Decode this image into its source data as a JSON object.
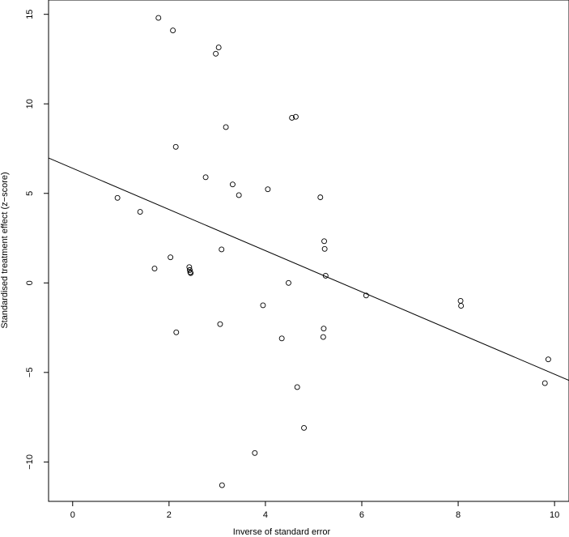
{
  "chart_data": {
    "type": "scatter",
    "xlabel": "Inverse of standard error",
    "ylabel": "Standardised treatment effect (z−score)",
    "xlim": [
      -0.5,
      10.3
    ],
    "ylim": [
      -12.2,
      15.8
    ],
    "xticks": [
      0,
      2,
      4,
      6,
      8,
      10
    ],
    "yticks": [
      15,
      10,
      5,
      0,
      -5,
      -10
    ],
    "grid": false,
    "marker": "open-circle",
    "points": [
      {
        "x": 0.93,
        "y": 4.75
      },
      {
        "x": 1.4,
        "y": 3.97
      },
      {
        "x": 1.7,
        "y": 0.8
      },
      {
        "x": 1.78,
        "y": 14.8
      },
      {
        "x": 2.03,
        "y": 1.43
      },
      {
        "x": 2.08,
        "y": 14.1
      },
      {
        "x": 2.14,
        "y": 7.6
      },
      {
        "x": 2.15,
        "y": -2.76
      },
      {
        "x": 2.42,
        "y": 0.88
      },
      {
        "x": 2.43,
        "y": 0.72
      },
      {
        "x": 2.44,
        "y": 0.6
      },
      {
        "x": 2.45,
        "y": 0.55
      },
      {
        "x": 2.76,
        "y": 5.9
      },
      {
        "x": 2.97,
        "y": 12.8
      },
      {
        "x": 3.03,
        "y": 13.15
      },
      {
        "x": 3.06,
        "y": -2.3
      },
      {
        "x": 3.09,
        "y": 1.87
      },
      {
        "x": 3.1,
        "y": -11.3
      },
      {
        "x": 3.18,
        "y": 8.7
      },
      {
        "x": 3.32,
        "y": 5.5
      },
      {
        "x": 3.45,
        "y": 4.9
      },
      {
        "x": 3.78,
        "y": -9.5
      },
      {
        "x": 3.95,
        "y": -1.25
      },
      {
        "x": 4.05,
        "y": 5.23
      },
      {
        "x": 4.34,
        "y": -3.1
      },
      {
        "x": 4.48,
        "y": 0.0
      },
      {
        "x": 4.55,
        "y": 9.22
      },
      {
        "x": 4.63,
        "y": 9.28
      },
      {
        "x": 4.66,
        "y": -5.82
      },
      {
        "x": 4.8,
        "y": -8.1
      },
      {
        "x": 5.14,
        "y": 4.78
      },
      {
        "x": 5.2,
        "y": -3.02
      },
      {
        "x": 5.21,
        "y": -2.55
      },
      {
        "x": 5.22,
        "y": 2.33
      },
      {
        "x": 5.23,
        "y": 1.9
      },
      {
        "x": 5.25,
        "y": 0.4
      },
      {
        "x": 6.09,
        "y": -0.7
      },
      {
        "x": 8.05,
        "y": -1.0
      },
      {
        "x": 8.06,
        "y": -1.28
      },
      {
        "x": 9.8,
        "y": -5.6
      },
      {
        "x": 9.87,
        "y": -4.27
      }
    ],
    "line": {
      "intercept": 6.4,
      "slope": -1.15
    }
  }
}
